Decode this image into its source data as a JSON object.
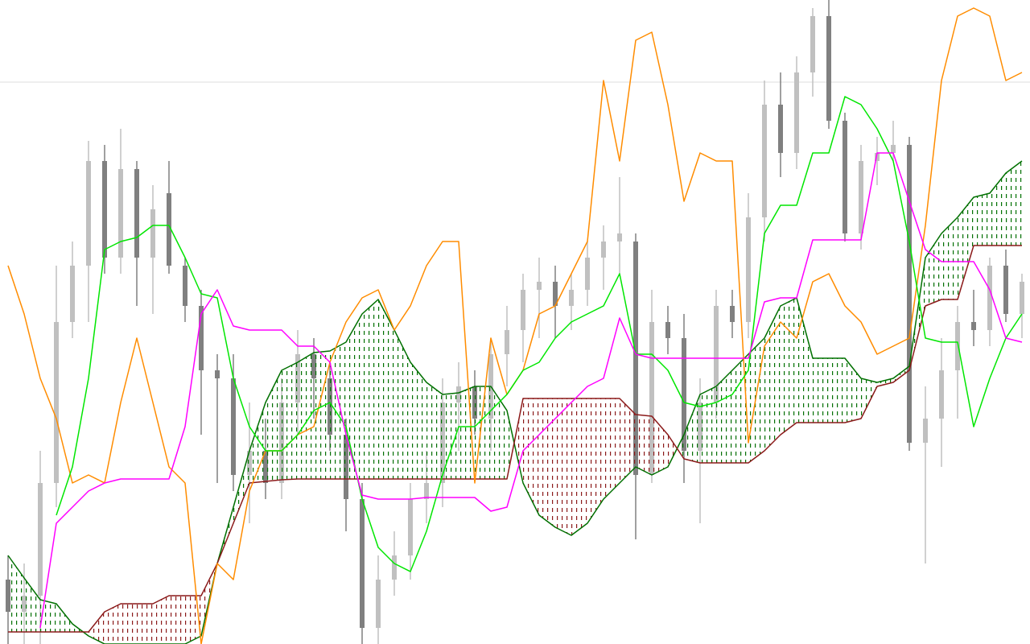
{
  "chart_data": {
    "type": "candlestick",
    "x": [
      0,
      1,
      2,
      3,
      4,
      5,
      6,
      7,
      8,
      9,
      10,
      11,
      12,
      13,
      14,
      15,
      16,
      17,
      18,
      19,
      20,
      21,
      22,
      23,
      24,
      25,
      26,
      27,
      28,
      29,
      30,
      31,
      32,
      33,
      34,
      35,
      36,
      37,
      38,
      39,
      40,
      41,
      42,
      43,
      44,
      45,
      46,
      47,
      48,
      49,
      50,
      51,
      52,
      53,
      54,
      55,
      56,
      57,
      58,
      59,
      60,
      61,
      62,
      63
    ],
    "xlim": [
      -0.5,
      63.5
    ],
    "ylim": [
      0,
      800
    ],
    "price_line": 698,
    "price_line_color": "#dddddd",
    "candles": {
      "up_color": "#c0c0c0",
      "down_color": "#808080",
      "open": [
        80,
        40,
        60,
        200,
        400,
        470,
        600,
        480,
        590,
        480,
        560,
        470,
        420,
        340,
        330,
        210,
        240,
        200,
        300,
        360,
        330,
        260,
        180,
        20,
        80,
        110,
        180,
        200,
        300,
        320,
        280,
        360,
        390,
        440,
        450,
        420,
        440,
        480,
        500,
        500,
        210,
        400,
        380,
        240,
        300,
        420,
        400,
        530,
        670,
        610,
        710,
        780,
        650,
        510,
        600,
        610,
        620,
        250,
        280,
        340,
        400,
        390,
        470,
        410
      ],
      "high": [
        110,
        100,
        240,
        470,
        500,
        625,
        620,
        640,
        600,
        570,
        600,
        480,
        440,
        360,
        360,
        300,
        280,
        330,
        390,
        380,
        350,
        280,
        200,
        110,
        140,
        200,
        240,
        330,
        350,
        340,
        380,
        420,
        460,
        480,
        470,
        460,
        500,
        520,
        580,
        510,
        440,
        420,
        410,
        330,
        440,
        440,
        560,
        700,
        710,
        730,
        790,
        800,
        660,
        620,
        630,
        650,
        630,
        320,
        380,
        420,
        440,
        480,
        490,
        460
      ],
      "low": [
        0,
        0,
        0,
        170,
        380,
        400,
        460,
        460,
        420,
        410,
        460,
        400,
        260,
        200,
        190,
        150,
        180,
        180,
        260,
        280,
        240,
        140,
        0,
        0,
        60,
        80,
        150,
        170,
        240,
        260,
        240,
        320,
        350,
        380,
        380,
        390,
        420,
        440,
        460,
        130,
        200,
        360,
        200,
        150,
        280,
        380,
        380,
        500,
        580,
        590,
        680,
        640,
        500,
        490,
        570,
        600,
        240,
        100,
        220,
        280,
        370,
        370,
        400,
        380
      ],
      "close": [
        40,
        60,
        200,
        400,
        470,
        600,
        480,
        590,
        480,
        540,
        470,
        420,
        340,
        330,
        210,
        240,
        200,
        300,
        360,
        330,
        260,
        180,
        20,
        80,
        110,
        180,
        200,
        300,
        320,
        280,
        360,
        390,
        440,
        450,
        420,
        440,
        480,
        500,
        510,
        210,
        400,
        380,
        240,
        300,
        420,
        400,
        530,
        670,
        610,
        710,
        780,
        650,
        510,
        600,
        610,
        620,
        250,
        280,
        340,
        400,
        390,
        470,
        410,
        450
      ]
    },
    "lines": [
      {
        "color": "#ff8c00",
        "values": [
          470,
          410,
          330,
          280,
          200,
          210,
          200,
          300,
          380,
          300,
          220,
          200,
          0,
          100,
          80,
          190,
          240,
          240,
          260,
          270,
          350,
          400,
          430,
          440,
          390,
          420,
          470,
          500,
          500,
          200,
          380,
          310,
          340,
          410,
          420,
          460,
          500,
          700,
          600,
          750,
          760,
          670,
          550,
          610,
          600,
          600,
          250,
          370,
          400,
          380,
          450,
          460,
          420,
          400,
          360,
          370,
          380,
          520,
          700,
          780,
          790,
          780,
          700,
          710
        ]
      },
      {
        "color": "#00e600",
        "values": [
          null,
          null,
          null,
          160,
          220,
          330,
          490,
          500,
          505,
          520,
          520,
          480,
          435,
          430,
          330,
          270,
          240,
          240,
          260,
          290,
          300,
          270,
          180,
          120,
          100,
          90,
          140,
          210,
          270,
          270,
          290,
          310,
          340,
          350,
          380,
          400,
          410,
          420,
          460,
          360,
          360,
          340,
          300,
          295,
          300,
          310,
          340,
          510,
          545,
          545,
          610,
          610,
          680,
          670,
          640,
          600,
          500,
          380,
          375,
          375,
          270,
          330,
          380,
          410
        ]
      },
      {
        "color": "#ff00ff",
        "values": [
          null,
          null,
          20,
          150,
          170,
          190,
          200,
          205,
          205,
          205,
          205,
          270,
          410,
          440,
          395,
          390,
          390,
          390,
          370,
          370,
          350,
          260,
          185,
          180,
          180,
          180,
          182,
          182,
          182,
          182,
          165,
          170,
          240,
          260,
          280,
          300,
          320,
          330,
          405,
          360,
          355,
          355,
          355,
          355,
          355,
          355,
          355,
          425,
          430,
          430,
          502,
          502,
          502,
          502,
          610,
          610,
          550,
          490,
          475,
          475,
          475,
          440,
          380,
          375
        ]
      }
    ],
    "span_a": {
      "color": "#007000",
      "values": [
        110,
        82,
        55,
        50,
        25,
        10,
        0,
        0,
        0,
        0,
        0,
        0,
        10,
        100,
        170,
        240,
        300,
        340,
        350,
        362,
        364,
        375,
        410,
        428,
        390,
        350,
        325,
        310,
        312,
        320,
        320,
        290,
        200,
        160,
        145,
        135,
        150,
        180,
        200,
        220,
        210,
        220,
        260,
        310,
        320,
        340,
        360,
        380,
        420,
        430,
        355,
        355,
        355,
        330,
        325,
        330,
        345,
        480,
        510,
        530,
        555,
        560,
        585,
        600
      ]
    },
    "span_b": {
      "color": "#8b1a1a",
      "values": [
        15,
        15,
        15,
        15,
        15,
        15,
        40,
        50,
        50,
        50,
        60,
        60,
        60,
        100,
        150,
        200,
        202,
        204,
        205,
        205,
        205,
        205,
        205,
        205,
        205,
        205,
        205,
        205,
        205,
        205,
        205,
        205,
        305,
        305,
        305,
        305,
        305,
        305,
        305,
        285,
        283,
        260,
        230,
        225,
        225,
        225,
        225,
        240,
        260,
        275,
        275,
        275,
        275,
        280,
        320,
        325,
        340,
        420,
        428,
        428,
        495,
        495,
        495,
        495
      ]
    },
    "cloud_up_color": "#007000",
    "cloud_down_color": "#8b1a1a"
  }
}
